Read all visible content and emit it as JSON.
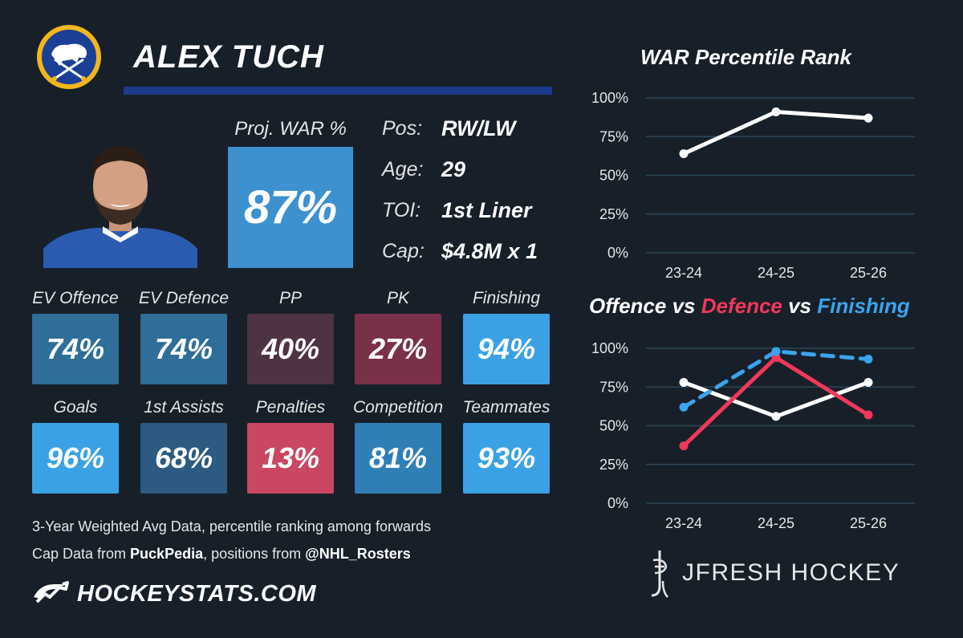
{
  "header": {
    "player_name": "ALEX TUCH"
  },
  "projection": {
    "label": "Proj. WAR %",
    "value": "87%",
    "color": "#3d91cf"
  },
  "info": [
    {
      "label": "Pos:",
      "value": "RW/LW"
    },
    {
      "label": "Age:",
      "value": "29"
    },
    {
      "label": "TOI:",
      "value": "1st Liner"
    },
    {
      "label": "Cap:",
      "value": "$4.8M x 1"
    }
  ],
  "tiles": [
    {
      "label": "EV Offence",
      "value": "74%",
      "color": "#2f6e98"
    },
    {
      "label": "EV Defence",
      "value": "74%",
      "color": "#2f6e98"
    },
    {
      "label": "PP",
      "value": "40%",
      "color": "#4e3344"
    },
    {
      "label": "PK",
      "value": "27%",
      "color": "#7a3048"
    },
    {
      "label": "Finishing",
      "value": "94%",
      "color": "#3aa2e4"
    },
    {
      "label": "Goals",
      "value": "96%",
      "color": "#3aa2e4"
    },
    {
      "label": "1st Assists",
      "value": "68%",
      "color": "#2c5a80"
    },
    {
      "label": "Penalties",
      "value": "13%",
      "color": "#c94762"
    },
    {
      "label": "Competition",
      "value": "81%",
      "color": "#2f7fb6"
    },
    {
      "label": "Teammates",
      "value": "93%",
      "color": "#3aa2e4"
    }
  ],
  "footnotes": {
    "line1": "3-Year Weighted Avg Data, percentile ranking among forwards",
    "line2_prefix": "Cap Data from ",
    "line2_source1": "PuckPedia",
    "line2_middle": ", positions from ",
    "line2_source2": "@NHL_Rosters",
    "site": "HOCKEYSTATS.COM"
  },
  "brand": {
    "name": "JFRESH HOCKEY"
  },
  "chart_data": [
    {
      "type": "line",
      "title": "WAR Percentile Rank",
      "categories": [
        "23-24",
        "24-25",
        "25-26"
      ],
      "yticks": [
        "0%",
        "25%",
        "50%",
        "75%",
        "100%"
      ],
      "ylim": [
        0,
        100
      ],
      "grid": true,
      "series": [
        {
          "values": [
            64,
            91,
            87
          ],
          "color": "#ffffff",
          "dash": false
        }
      ]
    },
    {
      "type": "line",
      "title_parts": [
        "Offence",
        " vs ",
        "Defence",
        " vs ",
        "Finishing"
      ],
      "title_colors": [
        "#ffffff",
        "#ffffff",
        "#f0385a",
        "#ffffff",
        "#3ba4ec"
      ],
      "categories": [
        "23-24",
        "24-25",
        "25-26"
      ],
      "yticks": [
        "0%",
        "25%",
        "50%",
        "75%",
        "100%"
      ],
      "ylim": [
        0,
        100
      ],
      "grid": true,
      "series": [
        {
          "name": "Offence",
          "values": [
            78,
            56,
            78
          ],
          "color": "#ffffff",
          "dash": false
        },
        {
          "name": "Defence",
          "values": [
            37,
            94,
            57
          ],
          "color": "#f0385a",
          "dash": false
        },
        {
          "name": "Finishing",
          "values": [
            62,
            98,
            93
          ],
          "color": "#3ba4ec",
          "dash": true
        }
      ]
    }
  ]
}
